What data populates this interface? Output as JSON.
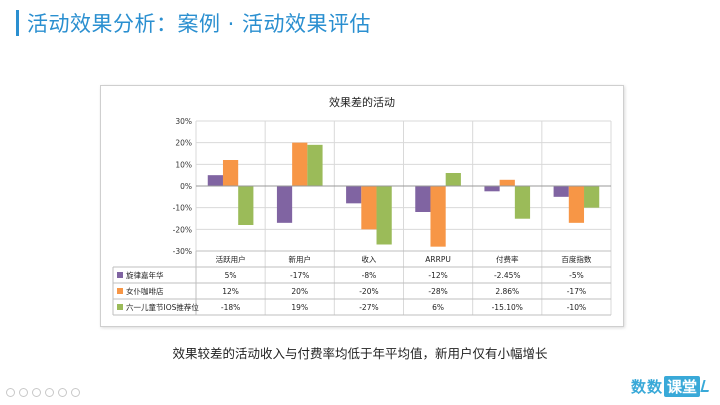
{
  "slide": {
    "title": "活动效果分析：案例 · 活动效果评估",
    "caption": "效果较差的活动收入与付费率均低于年平均值，新用户仅有小幅增长",
    "logo_text": "数数",
    "logo_box": "课堂"
  },
  "chart_data": {
    "type": "bar",
    "title": "效果差的活动",
    "categories": [
      "活跃用户",
      "新用户",
      "收入",
      "ARRPU",
      "付费率",
      "百度指数"
    ],
    "ylim": [
      -30,
      30
    ],
    "yticks": [
      30,
      20,
      10,
      0,
      -10,
      -20,
      -30
    ],
    "ytick_labels": [
      "30%",
      "20%",
      "10%",
      "0%",
      "-10%",
      "-20%",
      "-30%"
    ],
    "grid": true,
    "legend": "data-table",
    "series": [
      {
        "name": "旋律嘉年华",
        "color": "#8064a2",
        "values": [
          5,
          -17,
          -8,
          -12,
          -2.45,
          -5
        ],
        "labels": [
          "5%",
          "-17%",
          "-8%",
          "-12%",
          "-2.45%",
          "-5%"
        ]
      },
      {
        "name": "女仆咖啡店",
        "color": "#f79646",
        "values": [
          12,
          20,
          -20,
          -28,
          2.86,
          -17
        ],
        "labels": [
          "12%",
          "20%",
          "-20%",
          "-28%",
          "2.86%",
          "-17%"
        ]
      },
      {
        "name": "六一儿童节IOS推荐位",
        "color": "#9bbb59",
        "values": [
          -18,
          19,
          -27,
          6,
          -15.1,
          -10
        ],
        "labels": [
          "-18%",
          "19%",
          "-27%",
          "6%",
          "-15.10%",
          "-10%"
        ]
      }
    ]
  }
}
